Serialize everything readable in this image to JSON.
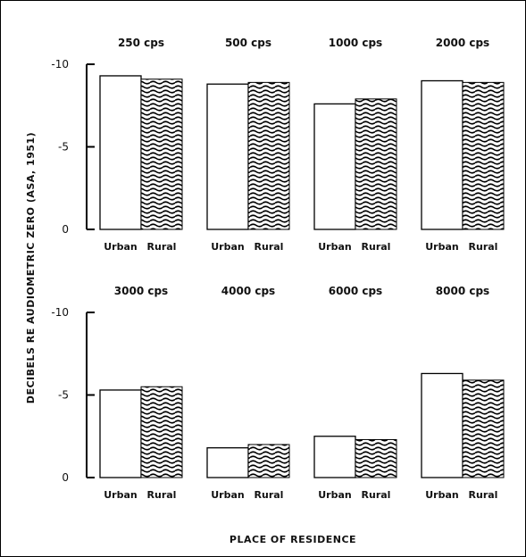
{
  "chart_data": {
    "type": "bar",
    "ylabel": "DECIBELS RE AUDIOMETRIC ZERO (ASA, 1951)",
    "xlabel": "PLACE OF RESIDENCE",
    "categories": [
      "Urban",
      "Rural"
    ],
    "ylim": [
      0,
      -10
    ],
    "y_ticks": [
      "-10",
      "-5",
      "0"
    ],
    "colors": {
      "urban": "#ffffff",
      "rural_pattern": "#000000"
    },
    "panels": [
      {
        "frequency": "250 cps",
        "values": [
          -9.3,
          -9.1
        ]
      },
      {
        "frequency": "500 cps",
        "values": [
          -8.8,
          -8.9
        ]
      },
      {
        "frequency": "1000 cps",
        "values": [
          -7.6,
          -7.9
        ]
      },
      {
        "frequency": "2000 cps",
        "values": [
          -9.0,
          -8.9
        ]
      },
      {
        "frequency": "3000 cps",
        "values": [
          -5.3,
          -5.5
        ]
      },
      {
        "frequency": "4000 cps",
        "values": [
          -1.8,
          -2.0
        ]
      },
      {
        "frequency": "6000 cps",
        "values": [
          -2.5,
          -2.3
        ]
      },
      {
        "frequency": "8000 cps",
        "values": [
          -6.3,
          -5.9
        ]
      }
    ]
  }
}
